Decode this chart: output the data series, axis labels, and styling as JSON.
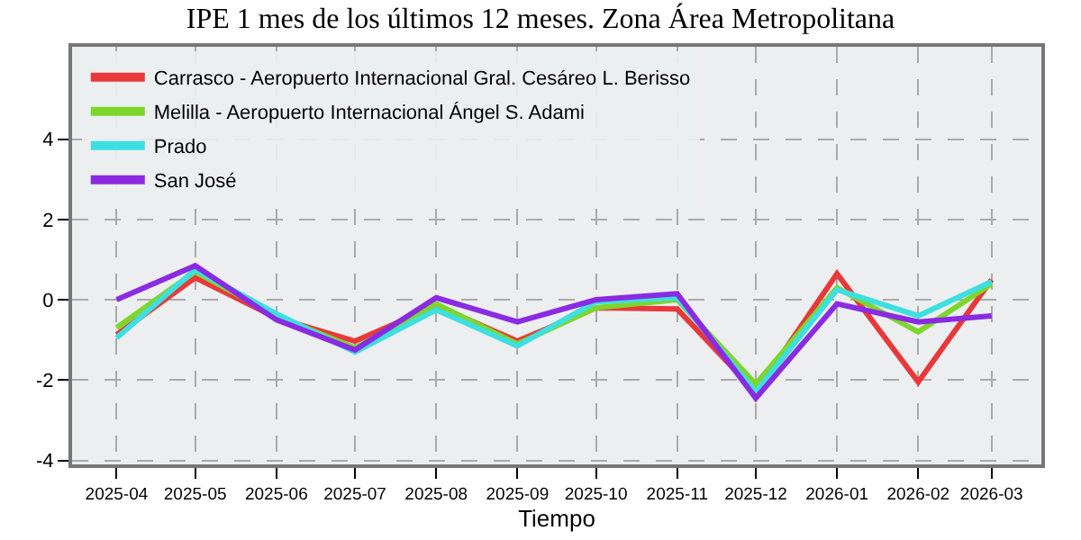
{
  "chart_data": {
    "type": "line",
    "title": "IPE 1 mes de los últimos 12 meses. Zona Área Metropolitana",
    "xlabel": "Tiempo",
    "x": [
      "2025-04",
      "2025-05",
      "2025-06",
      "2025-07",
      "2025-08",
      "2025-09",
      "2025-10",
      "2025-11",
      "2025-12",
      "2026-01",
      "2026-02",
      "2026-03"
    ],
    "series": [
      {
        "name": "Carrasco - Aeropuerto Internacional Gral. Cesáreo L. Berisso",
        "color": "#e8383a",
        "values": [
          -0.87,
          0.55,
          -0.45,
          -1.03,
          -0.15,
          -1.03,
          -0.2,
          -0.23,
          -2.3,
          0.65,
          -2.05,
          0.5
        ]
      },
      {
        "name": "Melilla - Aeropuerto Internacional Ángel S. Adami",
        "color": "#7ed62d",
        "values": [
          -0.7,
          0.7,
          -0.4,
          -1.2,
          -0.1,
          -1.1,
          -0.2,
          0,
          -2.1,
          0.3,
          -0.8,
          0.4
        ]
      },
      {
        "name": "Prado",
        "color": "#3ddfe0",
        "values": [
          -0.95,
          0.75,
          -0.35,
          -1.3,
          -0.25,
          -1.15,
          -0.05,
          0.05,
          -2.3,
          0.25,
          -0.4,
          0.45
        ]
      },
      {
        "name": "San José",
        "color": "#8a2be2",
        "values": [
          0,
          0.85,
          -0.5,
          -1.25,
          0.05,
          -0.55,
          0,
          0.15,
          -2.45,
          -0.1,
          -0.55,
          -0.4
        ]
      }
    ],
    "xlim": [
      "2025-03-15",
      "2026-03-20"
    ],
    "xticks": [
      "2025-04",
      "2025-05",
      "2025-06",
      "2025-07",
      "2025-08",
      "2025-09",
      "2025-10",
      "2025-11",
      "2025-12",
      "2026-01",
      "2026-02",
      "2026-03"
    ],
    "ylim": [
      -4.1,
      6.3
    ],
    "yticks": [
      -4,
      -2,
      0,
      2,
      4
    ],
    "grid": true,
    "legend": "top",
    "line_style": "solid",
    "marker": "none"
  }
}
